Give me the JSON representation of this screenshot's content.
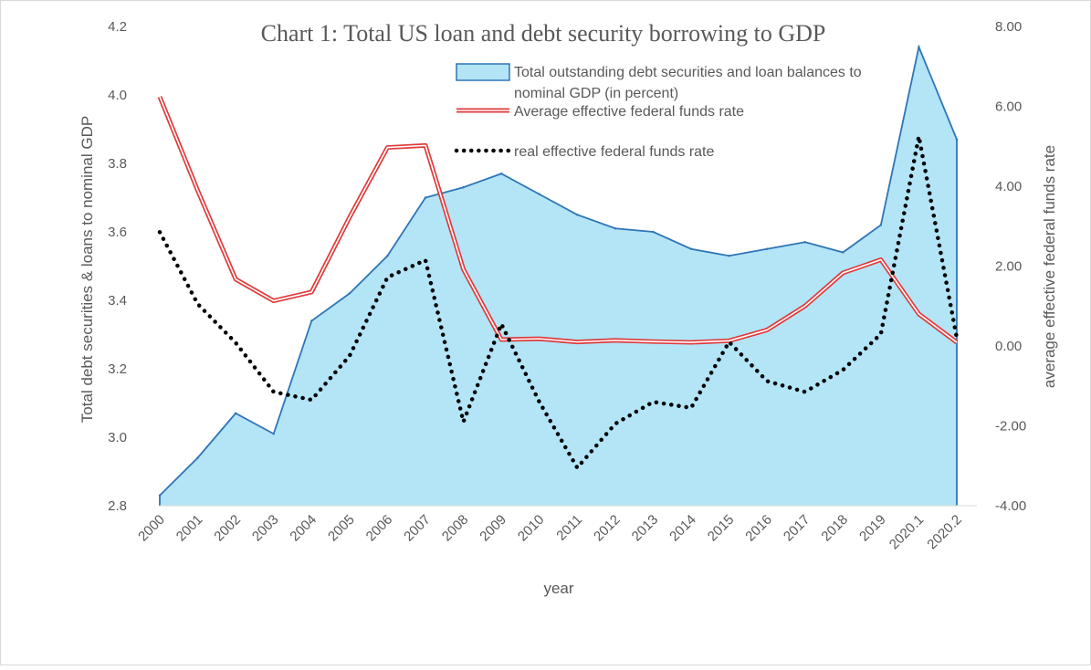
{
  "chart_data": {
    "type": "area",
    "title": "Chart 1: Total US loan and debt security borrowing to GDP",
    "xlabel": "year",
    "ylabel": "Total debt securities & loans to nominal GDP",
    "y2label": "average effective federal funds rate",
    "categories": [
      "2000",
      "2001",
      "2002",
      "2003",
      "2004",
      "2005",
      "2006",
      "2007",
      "2008",
      "2009",
      "2010",
      "2011",
      "2012",
      "2013",
      "2014",
      "2015",
      "2016",
      "2017",
      "2018",
      "2019",
      "2020.1",
      "2020.2"
    ],
    "y_ticks": [
      "2.8",
      "3.0",
      "3.2",
      "3.4",
      "3.6",
      "3.8",
      "4.0",
      "4.2"
    ],
    "y2_ticks": [
      "-4.00",
      "-2.00",
      "0.00",
      "2.00",
      "4.00",
      "6.00",
      "8.00"
    ],
    "ylim": [
      2.8,
      4.2
    ],
    "y2lim": [
      -4,
      8
    ],
    "grid": false,
    "legend_position": "top-right",
    "series": [
      {
        "name": "Total outstanding debt securities and loan balances to nominal GDP (in percent)",
        "type": "area",
        "axis": "left",
        "color": "#2e75b6",
        "fill": "#b3e5f7",
        "values": [
          2.83,
          2.94,
          3.07,
          3.01,
          3.34,
          3.42,
          3.53,
          3.7,
          3.73,
          3.77,
          3.71,
          3.65,
          3.61,
          3.6,
          3.55,
          3.53,
          3.55,
          3.57,
          3.54,
          3.62,
          4.14,
          3.87
        ]
      },
      {
        "name": "Average effective federal funds rate",
        "type": "line",
        "axis": "right",
        "color": "#e03b3b",
        "style": "double",
        "values": [
          6.24,
          3.89,
          1.67,
          1.13,
          1.35,
          3.22,
          4.97,
          5.02,
          1.92,
          0.16,
          0.18,
          0.1,
          0.14,
          0.11,
          0.09,
          0.13,
          0.4,
          1.0,
          1.83,
          2.16,
          0.8,
          0.09
        ]
      },
      {
        "name": "real effective federal funds rate",
        "type": "line",
        "axis": "right",
        "color": "#000000",
        "style": "dotted",
        "values": [
          2.85,
          1.05,
          0.08,
          -1.15,
          -1.35,
          -0.25,
          1.72,
          2.15,
          -1.9,
          0.55,
          -1.4,
          -3.05,
          -1.95,
          -1.4,
          -1.55,
          0.1,
          -0.88,
          -1.15,
          -0.6,
          0.3,
          5.25,
          0.2
        ]
      }
    ]
  }
}
